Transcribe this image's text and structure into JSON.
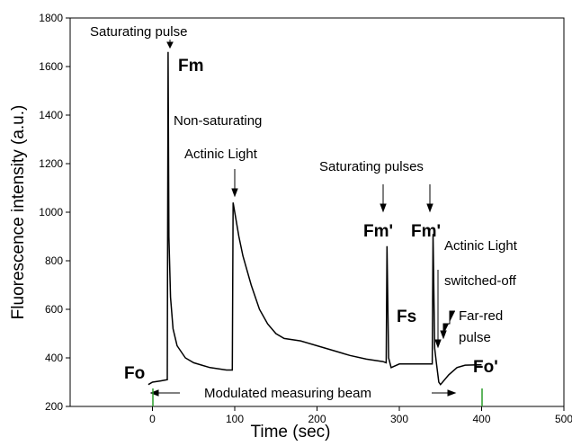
{
  "chart_data": {
    "type": "line",
    "x_label": "Time (sec)",
    "y_label": "Fluorescence intensity (a.u.)",
    "x": [
      -5,
      0,
      10,
      18,
      19,
      20,
      22,
      25,
      30,
      40,
      50,
      60,
      70,
      80,
      90,
      97,
      98,
      100,
      105,
      110,
      120,
      130,
      140,
      150,
      160,
      180,
      200,
      220,
      240,
      260,
      280,
      284,
      285,
      287,
      290,
      300,
      320,
      340,
      341,
      343,
      345,
      348,
      350,
      360,
      370,
      380,
      400
    ],
    "series": [
      {
        "color": "#000000",
        "values": [
          290,
          300,
          305,
          310,
          1660,
          900,
          650,
          520,
          450,
          400,
          380,
          370,
          360,
          355,
          350,
          350,
          1040,
          1000,
          900,
          820,
          700,
          600,
          540,
          500,
          480,
          470,
          450,
          430,
          410,
          395,
          385,
          380,
          860,
          400,
          360,
          375,
          375,
          375,
          910,
          440,
          380,
          300,
          290,
          330,
          360,
          370,
          372
        ]
      }
    ],
    "xlim": [
      -100,
      500
    ],
    "xticks": [
      0,
      100,
      200,
      300,
      400,
      500
    ],
    "ylim": [
      200,
      1800
    ],
    "yticks": [
      200,
      400,
      600,
      800,
      1000,
      1200,
      1400,
      1600,
      1800
    ],
    "annotations": [
      "Saturating pulse",
      "Fm",
      "Non-saturating",
      "Actinic Light",
      "Saturating pulses",
      "Fm'",
      "Fm'",
      "Actinic Light",
      "switched-off",
      "Far-red",
      "pulse",
      "Fs",
      "Fo",
      "Fo'",
      "Modulated measuring beam"
    ]
  }
}
